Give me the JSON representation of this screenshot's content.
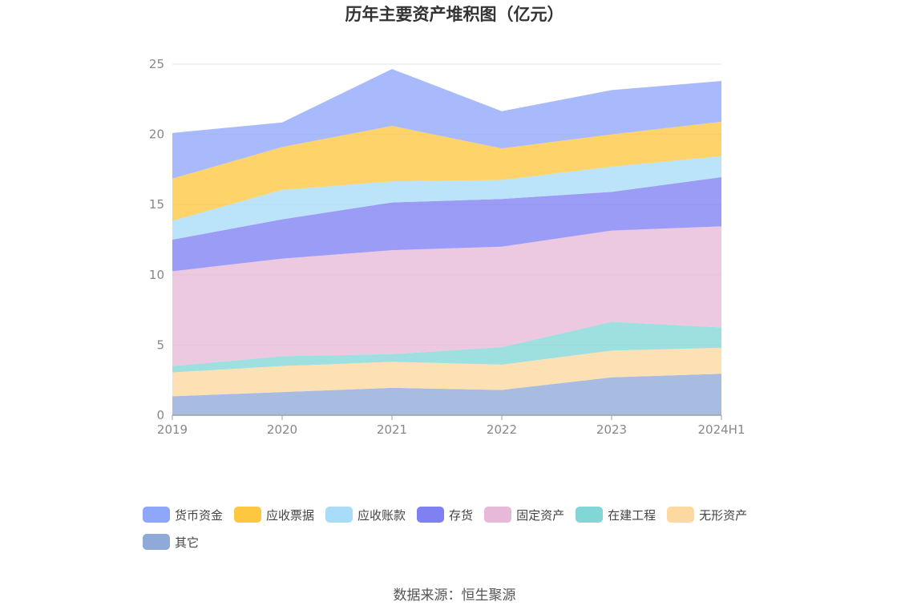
{
  "title": "历年主要资产堆积图（亿元）",
  "source": "数据来源：恒生聚源",
  "chart_data": {
    "type": "area",
    "stacked": true,
    "title": "历年主要资产堆积图（亿元）",
    "xlabel": "",
    "ylabel": "",
    "x": [
      "2019",
      "2020",
      "2021",
      "2022",
      "2023",
      "2024H1"
    ],
    "ylim": [
      0,
      25
    ],
    "yticks": [
      0,
      5,
      10,
      15,
      20,
      25
    ],
    "grid": true,
    "legend_position": "bottom",
    "series": [
      {
        "name": "其它",
        "color": "#8fa9d9",
        "values": [
          1.35,
          1.65,
          1.95,
          1.8,
          2.7,
          2.95
        ]
      },
      {
        "name": "无形资产",
        "color": "#fcd9a0",
        "values": [
          1.7,
          1.85,
          1.85,
          1.8,
          1.9,
          1.85
        ]
      },
      {
        "name": "在建工程",
        "color": "#83d6d6",
        "values": [
          0.45,
          0.7,
          0.55,
          1.25,
          2.05,
          1.45
        ]
      },
      {
        "name": "固定资产",
        "color": "#e8b8d8",
        "values": [
          6.75,
          6.95,
          7.4,
          7.15,
          6.5,
          7.2
        ]
      },
      {
        "name": "存货",
        "color": "#7f80f2",
        "values": [
          2.25,
          2.8,
          3.4,
          3.4,
          2.75,
          3.5
        ]
      },
      {
        "name": "应收账款",
        "color": "#a8dcf8",
        "values": [
          1.35,
          2.1,
          1.5,
          1.35,
          1.8,
          1.5
        ]
      },
      {
        "name": "应收票据",
        "color": "#fec740",
        "values": [
          3.0,
          3.05,
          3.95,
          2.25,
          2.3,
          2.45
        ]
      },
      {
        "name": "货币资金",
        "color": "#8fa7fb",
        "values": [
          3.25,
          1.75,
          4.05,
          2.65,
          3.15,
          2.9
        ]
      }
    ],
    "legend_order": [
      "货币资金",
      "应收票据",
      "应收账款",
      "存货",
      "固定资产",
      "在建工程",
      "无形资产",
      "其它"
    ]
  }
}
